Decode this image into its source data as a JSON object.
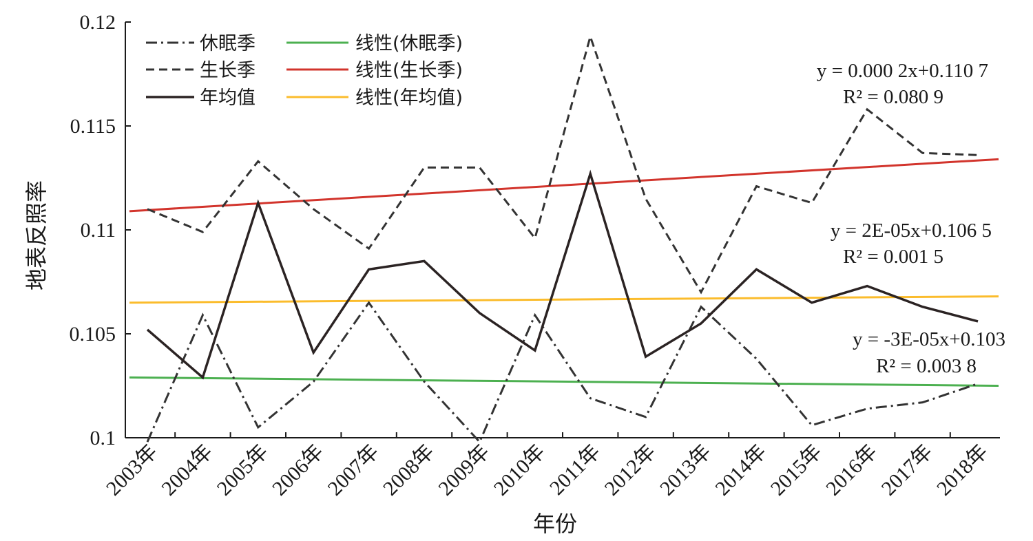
{
  "chart_data": {
    "type": "line",
    "title": "",
    "xlabel": "年份",
    "ylabel": "地表反照率",
    "ylim": [
      0.1,
      0.12
    ],
    "yticks": [
      "0.1",
      "0.105",
      "0.11",
      "0.115",
      "0.12"
    ],
    "categories": [
      "2003年",
      "2004年",
      "2005年",
      "2006年",
      "2007年",
      "2008年",
      "2009年",
      "2010年",
      "2011年",
      "2012年",
      "2013年",
      "2014年",
      "2015年",
      "2016年",
      "2017年",
      "2018年"
    ],
    "grid": false,
    "legend_position": "top-left",
    "series": [
      {
        "name": "休眠季",
        "style": "dashdot",
        "color": "#333333",
        "values": [
          0.0998,
          0.1059,
          0.1005,
          0.1027,
          0.1065,
          0.1027,
          0.0998,
          0.1059,
          0.1019,
          0.101,
          0.1063,
          0.1038,
          0.1006,
          0.1014,
          0.1017,
          0.1026
        ]
      },
      {
        "name": "生长季",
        "style": "dashed",
        "color": "#333333",
        "values": [
          0.111,
          0.1099,
          0.1133,
          0.111,
          0.1091,
          0.113,
          0.113,
          0.1096,
          0.1193,
          0.1115,
          0.107,
          0.1121,
          0.1113,
          0.1158,
          0.1137,
          0.1136
        ]
      },
      {
        "name": "年均值",
        "style": "solid",
        "color": "#2b2323",
        "values": [
          0.1052,
          0.1029,
          0.1113,
          0.1041,
          0.1081,
          0.1085,
          0.106,
          0.1042,
          0.1127,
          0.1039,
          0.1055,
          0.1081,
          0.1065,
          0.1073,
          0.1063,
          0.1056
        ]
      }
    ],
    "trendlines": [
      {
        "name": "线性(休眠季)",
        "color": "#4cb050",
        "start": 0.1029,
        "end": 0.1025
      },
      {
        "name": "线性(生长季)",
        "color": "#d2342c",
        "start": 0.1109,
        "end": 0.1134
      },
      {
        "name": "线性(年均值)",
        "color": "#fbbc2c",
        "start": 0.1065,
        "end": 0.1068
      }
    ],
    "annotations": [
      {
        "id": "growing",
        "lines": [
          "y = 0.000 2x+0.110 7",
          "R² = 0.080 9"
        ]
      },
      {
        "id": "annual",
        "lines": [
          "y = 2E-05x+0.106 5",
          "R² = 0.001 5"
        ]
      },
      {
        "id": "dormant",
        "lines": [
          "y = -3E-05x+0.103",
          "R² = 0.003 8"
        ]
      }
    ]
  }
}
